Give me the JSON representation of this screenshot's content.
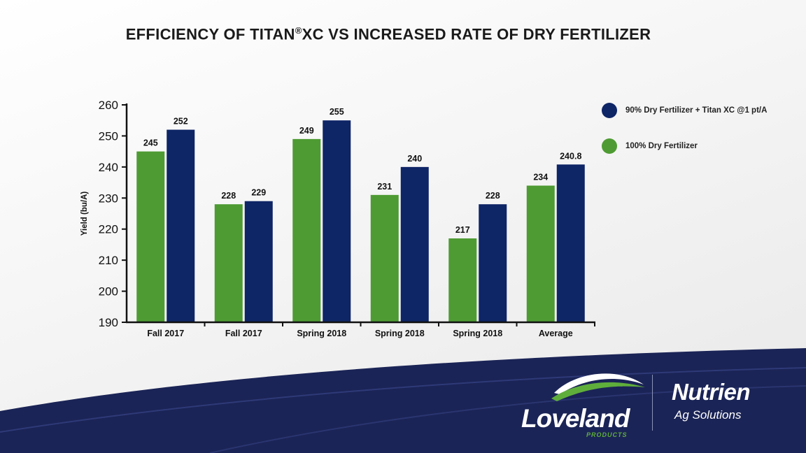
{
  "title": "EFFICIENCY OF TITAN",
  "title_reg": "®",
  "title_rest": "XC VS INCREASED RATE OF DRY FERTILIZER",
  "colors": {
    "green": "#4e9b33",
    "navy": "#0e2566",
    "footer_navy": "#1b2456"
  },
  "legend": [
    {
      "label": "90% Dry Fertilizer + Titan XC @1 pt/A",
      "color": "#0e2566"
    },
    {
      "label": "100% Dry Fertilizer",
      "color": "#4e9b33"
    }
  ],
  "branding": {
    "loveland": "Loveland",
    "loveland_sub": "PRODUCTS",
    "nutrien": "Nutrien",
    "nutrien_sub": "Ag Solutions"
  },
  "chart_data": {
    "type": "bar",
    "title": "EFFICIENCY OF TITAN®XC VS INCREASED RATE OF DRY FERTILIZER",
    "xlabel": "",
    "ylabel": "Yield (bu/A)",
    "ylim": [
      190,
      260
    ],
    "yticks": [
      190,
      200,
      210,
      220,
      230,
      240,
      250,
      260
    ],
    "categories": [
      "Fall 2017",
      "Fall 2017",
      "Spring 2018",
      "Spring 2018",
      "Spring 2018",
      "Average"
    ],
    "series": [
      {
        "name": "100% Dry Fertilizer",
        "color": "#4e9b33",
        "values": [
          245,
          228,
          249,
          231,
          217,
          234
        ],
        "labels": [
          "245",
          "228",
          "249",
          "231",
          "217",
          "234"
        ]
      },
      {
        "name": "90% Dry Fertilizer + Titan XC @1 pt/A",
        "color": "#0e2566",
        "values": [
          252,
          229,
          255,
          240,
          228,
          240.8
        ],
        "labels": [
          "252",
          "229",
          "255",
          "240",
          "228",
          "240.8"
        ]
      }
    ],
    "legend_position": "top-right",
    "grid": false
  }
}
